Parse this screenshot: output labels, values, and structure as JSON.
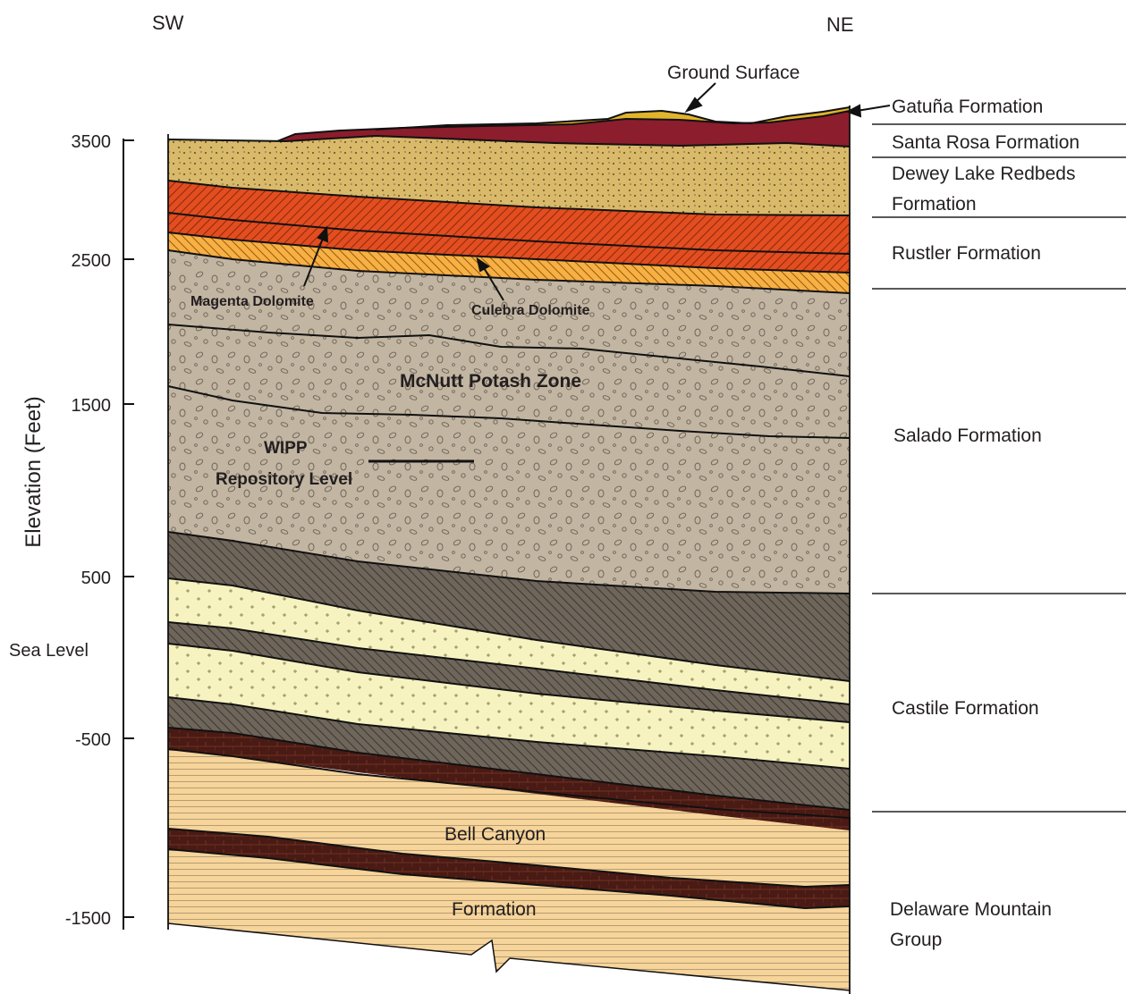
{
  "directions": {
    "left": "SW",
    "right": "NE"
  },
  "axis": {
    "label": "Elevation (Feet)",
    "ticks": [
      "3500",
      "2500",
      "1500",
      "500",
      "-500",
      "-1500"
    ],
    "sea_level": "Sea Level"
  },
  "callouts": {
    "ground_surface": "Ground Surface",
    "magenta": "Magenta Dolomite",
    "culebra": "Culebra Dolomite",
    "mcnutt": "McNutt Potash Zone",
    "wipp_line1": "WIPP",
    "wipp_line2": "Repository Level",
    "bell_canyon": "Bell Canyon",
    "formation": "Formation"
  },
  "formations": {
    "gatuna": "Gatuña Formation",
    "santa_rosa": "Santa Rosa Formation",
    "dewey_lake_1": "Dewey Lake Redbeds",
    "dewey_lake_2": "Formation",
    "rustler": "Rustler Formation",
    "salado": "Salado Formation",
    "castile": "Castile Formation",
    "delaware_1": "Delaware Mountain",
    "delaware_2": "Group"
  },
  "colors": {
    "dewey_lake": "#d9b96a",
    "santa_rosa": "#8b1d2c",
    "gatuna": "#e2b42c",
    "rustler_red": "#e34d1f",
    "culebra": "#f7b043",
    "salado": "#c2b5a2",
    "castile_gray": "#6e655b",
    "castile_cream": "#f7f3c0",
    "dark_brown": "#4a1a14",
    "bell_canyon": "#f6d49a"
  }
}
